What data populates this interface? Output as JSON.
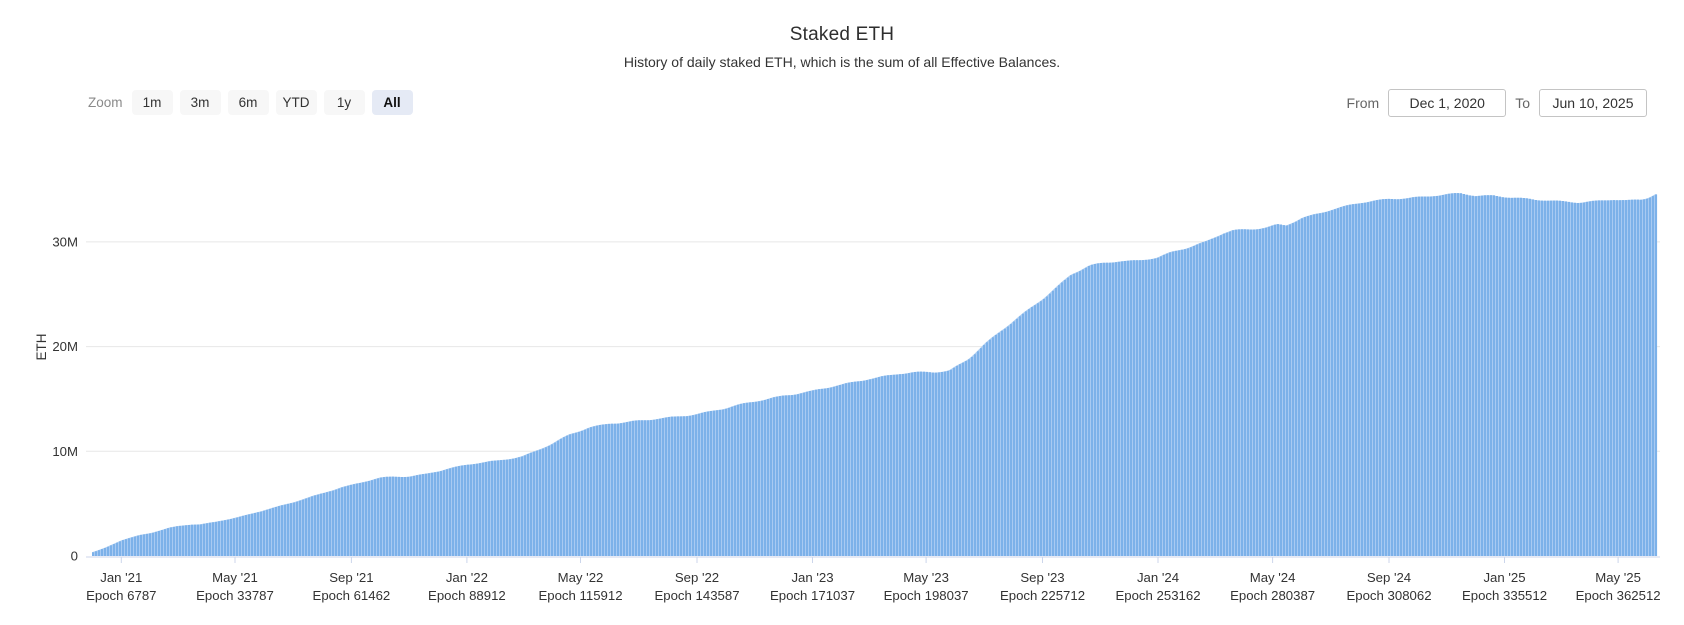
{
  "header": {
    "title": "Staked ETH",
    "subtitle": "History of daily staked ETH, which is the sum of all Effective Balances."
  },
  "toolbar": {
    "zoom_label": "Zoom",
    "buttons": [
      {
        "label": "1m",
        "selected": false
      },
      {
        "label": "3m",
        "selected": false
      },
      {
        "label": "6m",
        "selected": false
      },
      {
        "label": "YTD",
        "selected": false
      },
      {
        "label": "1y",
        "selected": false
      },
      {
        "label": "All",
        "selected": true
      }
    ],
    "from_label": "From",
    "from_value": "Dec 1, 2020",
    "to_label": "To",
    "to_value": "Jun 10, 2025"
  },
  "chart_data": {
    "type": "bar",
    "title": "Staked ETH",
    "subtitle": "History of daily staked ETH, which is the sum of all Effective Balances.",
    "xlabel": "",
    "ylabel": "ETH",
    "unit": "million ETH",
    "ylim": [
      0,
      35
    ],
    "grid": true,
    "legend": "none",
    "x_range": {
      "from": "2020-12-01",
      "to": "2025-06-10"
    },
    "y_axis": {
      "ticks": [
        {
          "label": "0",
          "value": 0
        },
        {
          "label": "10M",
          "value": 10
        },
        {
          "label": "20M",
          "value": 20
        },
        {
          "label": "30M",
          "value": 30
        }
      ]
    },
    "x_axis": {
      "ticks": [
        {
          "month": "Jan '21",
          "epoch": "Epoch 6787",
          "date": "2021-01-01"
        },
        {
          "month": "May '21",
          "epoch": "Epoch 33787",
          "date": "2021-05-01"
        },
        {
          "month": "Sep '21",
          "epoch": "Epoch 61462",
          "date": "2021-09-01"
        },
        {
          "month": "Jan '22",
          "epoch": "Epoch 88912",
          "date": "2022-01-01"
        },
        {
          "month": "May '22",
          "epoch": "Epoch 115912",
          "date": "2022-05-01"
        },
        {
          "month": "Sep '22",
          "epoch": "Epoch 143587",
          "date": "2022-09-01"
        },
        {
          "month": "Jan '23",
          "epoch": "Epoch 171037",
          "date": "2023-01-01"
        },
        {
          "month": "May '23",
          "epoch": "Epoch 198037",
          "date": "2023-05-01"
        },
        {
          "month": "Sep '23",
          "epoch": "Epoch 225712",
          "date": "2023-09-01"
        },
        {
          "month": "Jan '24",
          "epoch": "Epoch 253162",
          "date": "2024-01-01"
        },
        {
          "month": "May '24",
          "epoch": "Epoch 280387",
          "date": "2024-05-01"
        },
        {
          "month": "Sep '24",
          "epoch": "Epoch 308062",
          "date": "2024-09-01"
        },
        {
          "month": "Jan '25",
          "epoch": "Epoch 335512",
          "date": "2025-01-01"
        },
        {
          "month": "May '25",
          "epoch": "Epoch 362512",
          "date": "2025-05-01"
        }
      ]
    },
    "series": [
      {
        "name": "Staked ETH",
        "points": [
          {
            "date": "2020-12-01",
            "value": 0.35
          },
          {
            "date": "2020-12-15",
            "value": 0.8
          },
          {
            "date": "2021-01-01",
            "value": 1.5
          },
          {
            "date": "2021-01-20",
            "value": 2.0
          },
          {
            "date": "2021-02-01",
            "value": 2.2
          },
          {
            "date": "2021-02-20",
            "value": 2.7
          },
          {
            "date": "2021-03-01",
            "value": 2.85
          },
          {
            "date": "2021-03-15",
            "value": 3.0
          },
          {
            "date": "2021-03-25",
            "value": 3.0
          },
          {
            "date": "2021-04-10",
            "value": 3.25
          },
          {
            "date": "2021-05-01",
            "value": 3.65
          },
          {
            "date": "2021-05-20",
            "value": 4.1
          },
          {
            "date": "2021-06-10",
            "value": 4.6
          },
          {
            "date": "2021-07-01",
            "value": 5.1
          },
          {
            "date": "2021-08-01",
            "value": 6.0
          },
          {
            "date": "2021-08-20",
            "value": 6.55
          },
          {
            "date": "2021-09-10",
            "value": 7.0
          },
          {
            "date": "2021-10-01",
            "value": 7.45
          },
          {
            "date": "2021-10-15",
            "value": 7.55
          },
          {
            "date": "2021-11-01",
            "value": 7.6
          },
          {
            "date": "2021-11-20",
            "value": 7.9
          },
          {
            "date": "2021-12-10",
            "value": 8.3
          },
          {
            "date": "2022-01-01",
            "value": 8.7
          },
          {
            "date": "2022-02-01",
            "value": 9.1
          },
          {
            "date": "2022-03-01",
            "value": 9.55
          },
          {
            "date": "2022-04-01",
            "value": 10.7
          },
          {
            "date": "2022-04-20",
            "value": 11.6
          },
          {
            "date": "2022-05-10",
            "value": 12.3
          },
          {
            "date": "2022-06-01",
            "value": 12.7
          },
          {
            "date": "2022-06-20",
            "value": 12.8
          },
          {
            "date": "2022-07-10",
            "value": 12.95
          },
          {
            "date": "2022-08-01",
            "value": 13.2
          },
          {
            "date": "2022-09-01",
            "value": 13.6
          },
          {
            "date": "2022-10-01",
            "value": 14.1
          },
          {
            "date": "2022-11-01",
            "value": 14.75
          },
          {
            "date": "2022-12-01",
            "value": 15.35
          },
          {
            "date": "2023-01-01",
            "value": 15.75
          },
          {
            "date": "2023-02-01",
            "value": 16.35
          },
          {
            "date": "2023-03-01",
            "value": 16.95
          },
          {
            "date": "2023-04-01",
            "value": 17.4
          },
          {
            "date": "2023-04-20",
            "value": 17.5
          },
          {
            "date": "2023-05-10",
            "value": 17.55
          },
          {
            "date": "2023-05-25",
            "value": 17.7
          },
          {
            "date": "2023-06-15",
            "value": 18.9
          },
          {
            "date": "2023-07-01",
            "value": 20.2
          },
          {
            "date": "2023-08-01",
            "value": 22.4
          },
          {
            "date": "2023-09-01",
            "value": 24.6
          },
          {
            "date": "2023-10-01",
            "value": 26.9
          },
          {
            "date": "2023-10-20",
            "value": 27.7
          },
          {
            "date": "2023-11-01",
            "value": 27.9
          },
          {
            "date": "2023-11-20",
            "value": 28.15
          },
          {
            "date": "2023-12-10",
            "value": 28.25
          },
          {
            "date": "2024-01-01",
            "value": 28.55
          },
          {
            "date": "2024-01-15",
            "value": 29.0
          },
          {
            "date": "2024-02-01",
            "value": 29.4
          },
          {
            "date": "2024-02-20",
            "value": 30.0
          },
          {
            "date": "2024-03-10",
            "value": 30.9
          },
          {
            "date": "2024-03-20",
            "value": 31.15
          },
          {
            "date": "2024-04-15",
            "value": 31.25
          },
          {
            "date": "2024-04-25",
            "value": 31.35
          },
          {
            "date": "2024-05-05",
            "value": 31.6
          },
          {
            "date": "2024-05-15",
            "value": 31.55
          },
          {
            "date": "2024-06-01",
            "value": 32.3
          },
          {
            "date": "2024-07-01",
            "value": 33.1
          },
          {
            "date": "2024-08-01",
            "value": 33.7
          },
          {
            "date": "2024-09-01",
            "value": 34.1
          },
          {
            "date": "2024-10-01",
            "value": 34.3
          },
          {
            "date": "2024-11-01",
            "value": 34.5
          },
          {
            "date": "2024-11-15",
            "value": 34.6
          },
          {
            "date": "2024-12-01",
            "value": 34.4
          },
          {
            "date": "2024-12-20",
            "value": 34.45
          },
          {
            "date": "2025-01-10",
            "value": 34.25
          },
          {
            "date": "2025-02-01",
            "value": 34.0
          },
          {
            "date": "2025-03-01",
            "value": 33.85
          },
          {
            "date": "2025-03-20",
            "value": 33.8
          },
          {
            "date": "2025-04-10",
            "value": 33.95
          },
          {
            "date": "2025-04-25",
            "value": 34.05
          },
          {
            "date": "2025-05-10",
            "value": 33.9
          },
          {
            "date": "2025-05-25",
            "value": 34.0
          },
          {
            "date": "2025-06-01",
            "value": 34.2
          },
          {
            "date": "2025-06-10",
            "value": 34.6
          }
        ]
      }
    ],
    "colors": {
      "bar": "#7cb1e9",
      "bar_gap": "#aaccf2",
      "gridline": "#e7e7e7",
      "axis_line": "#ccd6eb",
      "label": "#333333"
    }
  }
}
